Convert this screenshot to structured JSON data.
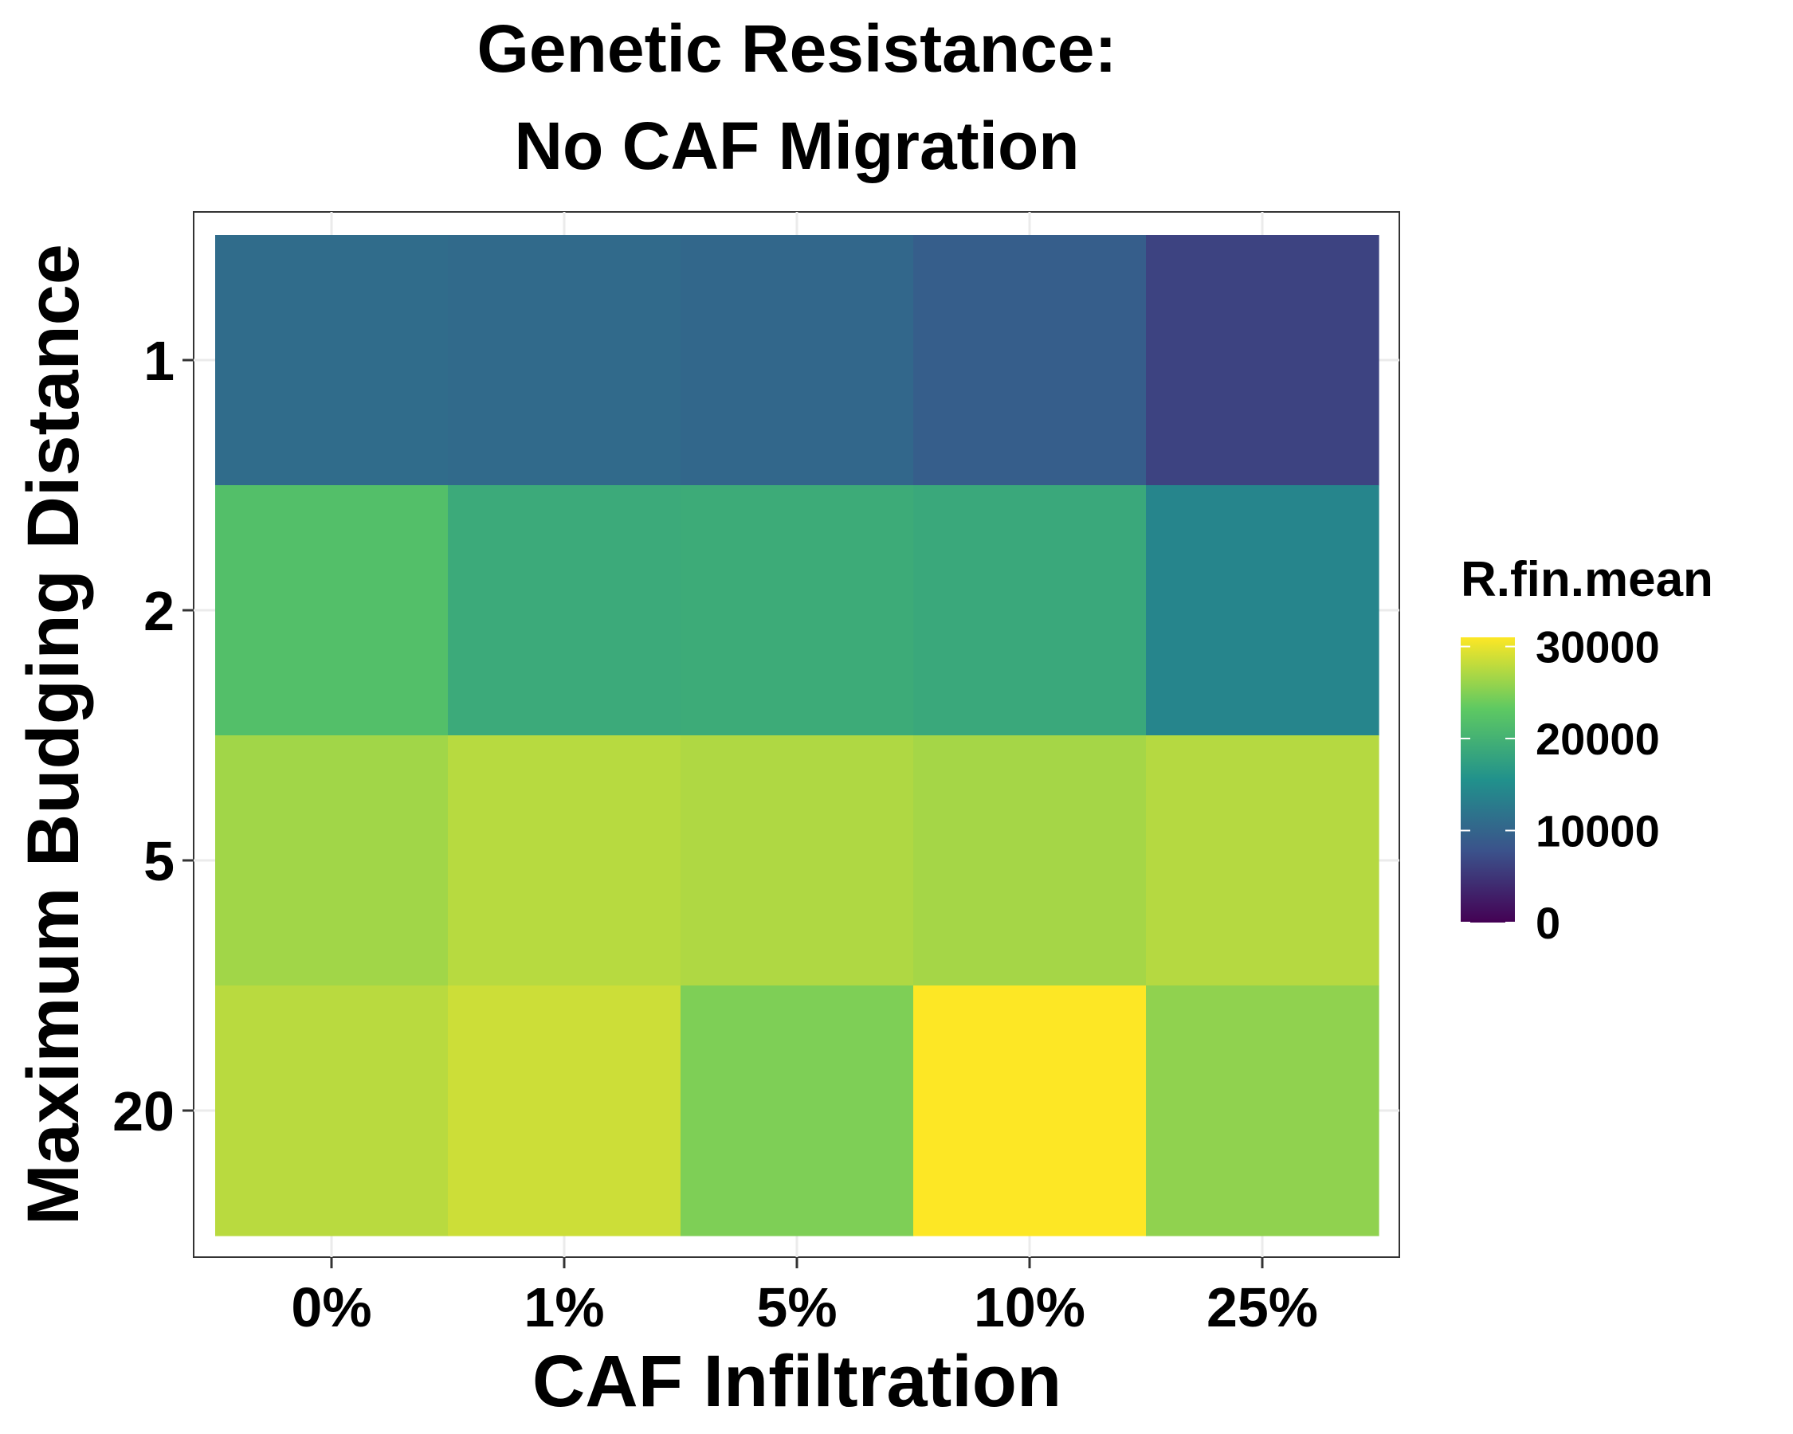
{
  "chart_data": {
    "type": "heatmap",
    "title_lines": [
      "Genetic Resistance:",
      "No CAF Migration"
    ],
    "xlabel": "CAF Infiltration",
    "ylabel": "Maximum Budging Distance",
    "x_categories": [
      "0%",
      "1%",
      "5%",
      "10%",
      "25%"
    ],
    "y_categories": [
      "1",
      "2",
      "5",
      "20"
    ],
    "values": [
      [
        11000,
        10700,
        10300,
        9200,
        6300
      ],
      [
        21900,
        18900,
        19100,
        18700,
        14000
      ],
      [
        26500,
        27600,
        27200,
        26700,
        27500
      ],
      [
        27700,
        28600,
        24800,
        31000,
        25700
      ]
    ],
    "legend": {
      "title": "R.fin.mean",
      "ticks": [
        0,
        10000,
        20000,
        30000
      ],
      "tick_labels": [
        "0",
        "10000",
        "20000",
        "30000"
      ],
      "range": [
        0,
        31000
      ],
      "placement": "right"
    },
    "colorscale": "viridis",
    "grid": true
  }
}
